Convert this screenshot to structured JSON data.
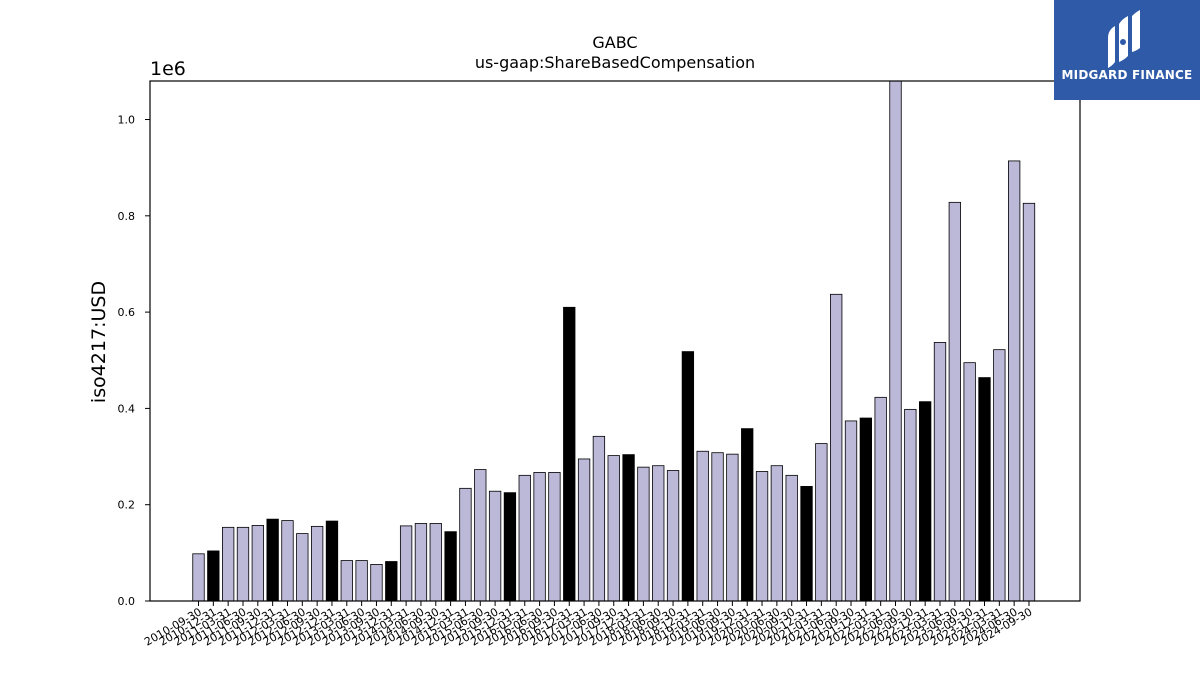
{
  "brand": {
    "name": "MIDGARD FINANCE",
    "bg": "#2e5aa8",
    "icon": "midgard-logo-icon"
  },
  "chart_data": {
    "type": "bar",
    "title": "GABC",
    "subtitle": "us-gaap:ShareBasedCompensation",
    "ylabel": "iso4217:USD",
    "offset_label": "1e6",
    "ylim": [
      0,
      1.08
    ],
    "yticks": [
      0.0,
      0.2,
      0.4,
      0.6,
      0.8,
      1.0
    ],
    "ytick_labels": [
      "0.0",
      "0.2",
      "0.4",
      "0.6",
      "0.8",
      "1.0"
    ],
    "grid": false,
    "colors": {
      "quarter": "#bcb8d8",
      "fiscal_year_end": "#000000",
      "edge": "#000000"
    },
    "categories": [
      "2010-09-30",
      "2010-12-31",
      "2011-03-31",
      "2011-06-30",
      "2011-09-30",
      "2011-12-31",
      "2012-03-31",
      "2012-06-30",
      "2012-09-30",
      "2012-12-31",
      "2013-03-31",
      "2013-06-30",
      "2013-09-30",
      "2013-12-31",
      "2014-03-31",
      "2014-06-30",
      "2014-09-30",
      "2014-12-31",
      "2015-03-31",
      "2015-06-30",
      "2015-09-30",
      "2015-12-31",
      "2016-03-31",
      "2016-06-30",
      "2016-09-30",
      "2016-12-31",
      "2017-03-31",
      "2017-06-30",
      "2017-09-30",
      "2017-12-31",
      "2018-03-31",
      "2018-06-30",
      "2018-09-30",
      "2018-12-31",
      "2019-03-31",
      "2019-06-30",
      "2019-09-30",
      "2019-12-31",
      "2020-03-31",
      "2020-06-30",
      "2020-09-30",
      "2020-12-31",
      "2021-03-31",
      "2021-06-30",
      "2021-09-30",
      "2021-12-31",
      "2022-03-31",
      "2022-06-30",
      "2022-09-30",
      "2022-12-31",
      "2023-03-31",
      "2023-06-30",
      "2023-09-30",
      "2023-12-31",
      "2024-03-31",
      "2024-06-30",
      "2024-09-30"
    ],
    "values": [
      0.098,
      0.104,
      0.153,
      0.153,
      0.157,
      0.17,
      0.167,
      0.14,
      0.155,
      0.166,
      0.084,
      0.084,
      0.076,
      0.082,
      0.156,
      0.161,
      0.161,
      0.144,
      0.234,
      0.273,
      0.228,
      0.225,
      0.261,
      0.267,
      0.267,
      0.61,
      0.295,
      0.342,
      0.302,
      0.304,
      0.278,
      0.281,
      0.271,
      0.518,
      0.311,
      0.308,
      0.305,
      0.358,
      0.269,
      0.281,
      0.261,
      0.238,
      0.327,
      0.637,
      0.374,
      0.38,
      0.423,
      1.085,
      0.398,
      0.414,
      0.537,
      0.828,
      0.495,
      0.464,
      0.522,
      0.914,
      0.826
    ],
    "fiscal_year_end": [
      false,
      true,
      false,
      false,
      false,
      true,
      false,
      false,
      false,
      true,
      false,
      false,
      false,
      true,
      false,
      false,
      false,
      true,
      false,
      false,
      false,
      true,
      false,
      false,
      false,
      true,
      false,
      false,
      false,
      true,
      false,
      false,
      false,
      true,
      false,
      false,
      false,
      true,
      false,
      false,
      false,
      true,
      false,
      false,
      false,
      true,
      false,
      false,
      false,
      true,
      false,
      false,
      false,
      true,
      false,
      false,
      false
    ]
  }
}
